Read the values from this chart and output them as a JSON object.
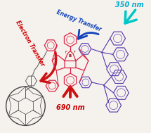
{
  "bg_color": "#f5f2ee",
  "energy_transfer_label": "Energy Transfer",
  "electron_transfer_label": "Electron Transfer",
  "wavelength_350": "350 nm",
  "wavelength_690": "690 nm",
  "arrow_cyan_color": "#00c8c8",
  "arrow_blue_color": "#1144bb",
  "arrow_red_color": "#cc1111",
  "text_cyan_color": "#00aacc",
  "text_blue_color": "#1144bb",
  "text_red_color": "#cc0000",
  "bodipy_color": "#dd2244",
  "tpa_color": "#5533aa",
  "c60_color": "#444444",
  "linker_color": "#666666"
}
